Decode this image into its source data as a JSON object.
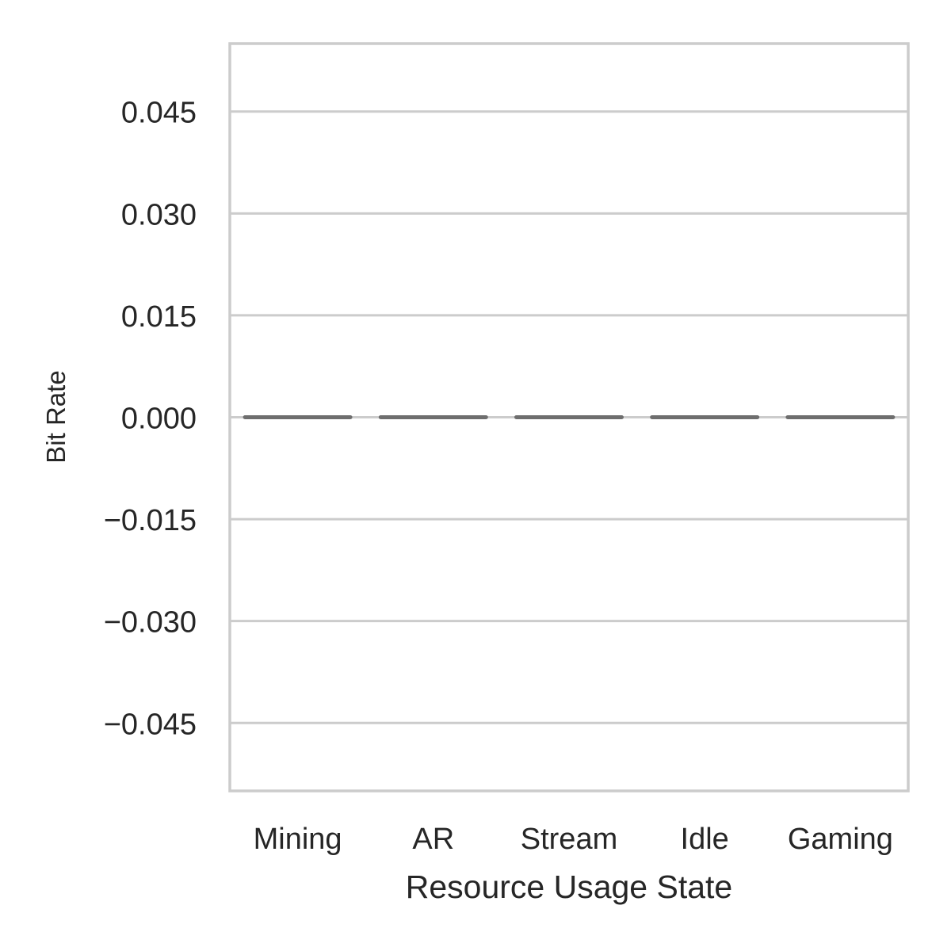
{
  "chart_data": {
    "type": "box",
    "title": "",
    "xlabel": "Resource Usage State",
    "ylabel": "Bit Rate",
    "categories": [
      "Mining",
      "AR",
      "Stream",
      "Idle",
      "Gaming"
    ],
    "values": [
      0,
      0,
      0,
      0,
      0
    ],
    "ylim": [
      -0.055,
      0.055
    ],
    "yticks": [
      0.045,
      0.03,
      0.015,
      0.0,
      -0.015,
      -0.03,
      -0.045
    ],
    "ytick_labels": [
      "0.045",
      "0.030",
      "0.015",
      "0.000",
      "−0.015",
      "−0.030",
      "−0.045"
    ],
    "grid": true,
    "colors": {
      "grid": "#cccccc",
      "frame": "#cccccc",
      "median": "#6e6e6e",
      "text": "#262626"
    }
  }
}
